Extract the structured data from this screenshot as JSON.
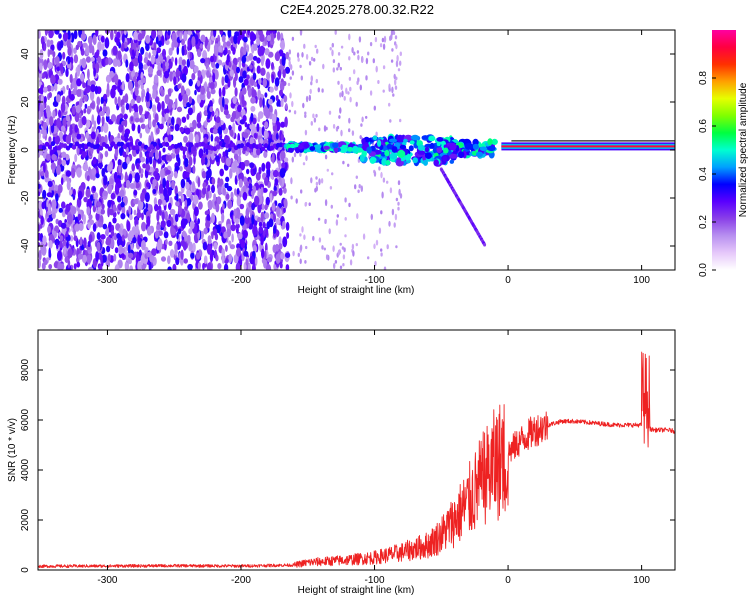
{
  "title": "C2E4.2025.278.00.32.R22",
  "chart_data": [
    {
      "type": "heatmap",
      "xlabel": "Height of straight line (km)",
      "ylabel": "Frequency (Hz)",
      "xlim": [
        -352,
        125
      ],
      "ylim": [
        -50,
        50
      ],
      "xticks": [
        -300,
        -200,
        -100,
        0,
        100
      ],
      "xtick_labels": [
        "-300",
        "-200",
        "-100",
        "0",
        "100"
      ],
      "yticks": [
        -40,
        -20,
        0,
        20,
        40
      ],
      "ytick_labels": [
        "-40",
        "-20",
        "0",
        "20",
        "40"
      ],
      "colorbar": {
        "label": "Normalized spectral amplitude",
        "range": [
          0,
          1
        ],
        "ticks": [
          0.0,
          0.2,
          0.4,
          0.6,
          0.8
        ],
        "tick_labels": [
          "0.0",
          "0.2",
          "0.4",
          "0.6",
          "0.8"
        ],
        "colors": [
          "#ffffff",
          "#e6c8fa",
          "#b890f0",
          "#8a40e8",
          "#5a00ff",
          "#0000ff",
          "#00a0ff",
          "#00ffd0",
          "#00ff40",
          "#80ff00",
          "#e6ff00",
          "#ffa000",
          "#ff3000",
          "#ff0040",
          "#ff00a0"
        ]
      },
      "features": {
        "noise_region_x": [
          -352,
          -165
        ],
        "carrier_frequency_hz": 1.5,
        "carrier_strong_from_x": -5,
        "tail_end": [
          -17,
          -40
        ]
      },
      "grid": false
    },
    {
      "type": "line",
      "xlabel": "Height of straight line (km)",
      "ylabel": "SNR (10 * v/v)",
      "xlim": [
        -352,
        125
      ],
      "ylim": [
        0,
        9600
      ],
      "xticks": [
        -300,
        -200,
        -100,
        0,
        100
      ],
      "xtick_labels": [
        "-300",
        "-200",
        "-100",
        "0",
        "100"
      ],
      "yticks": [
        0,
        2000,
        4000,
        6000,
        8000
      ],
      "ytick_labels": [
        "0",
        "2000",
        "4000",
        "6000",
        "8000"
      ],
      "color": "#ee2222",
      "series": [
        {
          "x": [
            -352,
            -300,
            -250,
            -200,
            -160,
            -150,
            -120,
            -100,
            -80,
            -60,
            -50,
            -40,
            -30,
            -20,
            -10,
            0,
            10,
            20,
            30,
            40,
            50,
            60,
            70,
            80,
            90,
            100,
            105,
            110,
            120,
            125
          ],
          "y": [
            150,
            160,
            170,
            160,
            200,
            300,
            400,
            500,
            700,
            1000,
            1400,
            2000,
            2700,
            3500,
            4200,
            4700,
            5200,
            5600,
            5800,
            5950,
            5950,
            5900,
            5850,
            5800,
            5800,
            5800,
            5650,
            5600,
            5600,
            5550
          ]
        }
      ],
      "grid": false
    }
  ]
}
